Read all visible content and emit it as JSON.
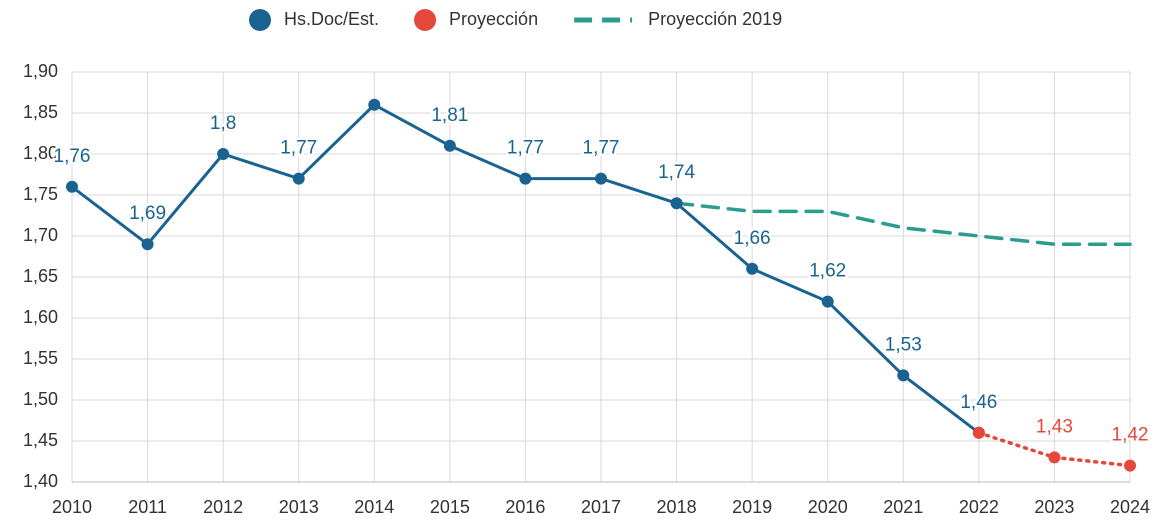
{
  "chart_data": {
    "type": "line",
    "categories": [
      "2010",
      "2011",
      "2012",
      "2013",
      "2014",
      "2015",
      "2016",
      "2017",
      "2018",
      "2019",
      "2020",
      "2021",
      "2022",
      "2023",
      "2024"
    ],
    "series": [
      {
        "name": "Hs.Doc/Est.",
        "color": "#1a6390",
        "line_style": "solid",
        "markers": true,
        "values": [
          1.76,
          1.69,
          1.8,
          1.77,
          1.86,
          1.81,
          1.77,
          1.77,
          1.74,
          1.66,
          1.62,
          1.53,
          1.46,
          null,
          null
        ],
        "value_labels": [
          "1,76",
          "1,69",
          "1,8",
          "1,77",
          null,
          "1,81",
          "1,77",
          "1,77",
          "1,74",
          "1,66",
          "1,62",
          "1,53",
          "1,46",
          null,
          null
        ]
      },
      {
        "name": "Proyección",
        "color": "#e5483b",
        "line_style": "dotted",
        "markers": true,
        "values": [
          null,
          null,
          null,
          null,
          null,
          null,
          null,
          null,
          null,
          null,
          null,
          null,
          1.46,
          1.43,
          1.42
        ],
        "value_labels": [
          null,
          null,
          null,
          null,
          null,
          null,
          null,
          null,
          null,
          null,
          null,
          null,
          null,
          "1,43",
          "1,42"
        ]
      },
      {
        "name": "Proyección 2019",
        "color": "#2a9d8f",
        "line_style": "dashed",
        "markers": false,
        "values": [
          null,
          null,
          null,
          null,
          null,
          null,
          null,
          null,
          1.74,
          1.73,
          1.73,
          1.71,
          1.7,
          1.69,
          1.69
        ]
      }
    ],
    "ylim": [
      1.4,
      1.9
    ],
    "yticks": [
      {
        "value": 1.4,
        "label": "1,40"
      },
      {
        "value": 1.45,
        "label": "1,45"
      },
      {
        "value": 1.5,
        "label": "1,50"
      },
      {
        "value": 1.55,
        "label": "1,55"
      },
      {
        "value": 1.6,
        "label": "1,60"
      },
      {
        "value": 1.65,
        "label": "1,65"
      },
      {
        "value": 1.7,
        "label": "1,70"
      },
      {
        "value": 1.75,
        "label": "1,75"
      },
      {
        "value": 1.8,
        "label": "1,80"
      },
      {
        "value": 1.85,
        "label": "1,85"
      },
      {
        "value": 1.9,
        "label": "1,90"
      }
    ],
    "grid": true,
    "legend": "top"
  }
}
